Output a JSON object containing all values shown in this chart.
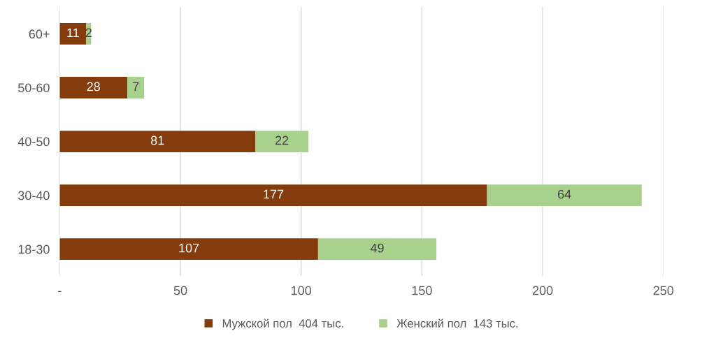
{
  "chart_data": {
    "type": "bar",
    "orientation": "horizontal",
    "stacked": true,
    "categories": [
      "60+",
      "50-60",
      "40-50",
      "30-40",
      "18-30"
    ],
    "series": [
      {
        "name": "Мужской пол  404 тыс.",
        "color": "#843c0c",
        "values": [
          11,
          28,
          81,
          177,
          107
        ]
      },
      {
        "name": "Женский пол  143 тыс.",
        "color": "#a9d18e",
        "values": [
          2,
          7,
          22,
          64,
          49
        ]
      }
    ],
    "xlim": [
      0,
      250
    ],
    "xticks": [
      {
        "value": 0,
        "label": "-"
      },
      50,
      100,
      150,
      200,
      250
    ],
    "grid": "x",
    "legend": "bottom",
    "data_labels": true
  }
}
